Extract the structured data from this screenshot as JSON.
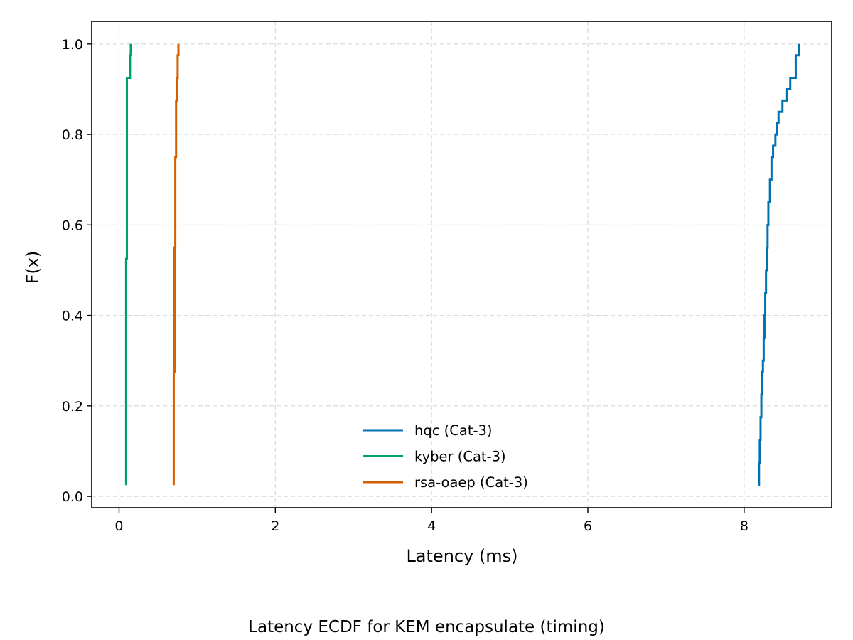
{
  "chart_data": {
    "type": "line",
    "subtype": "ecdf-step",
    "title": "",
    "caption": "Latency ECDF for KEM encapsulate (timing)",
    "xlabel": "Latency (ms)",
    "ylabel": "F(x)",
    "xlim": [
      -0.35,
      9.12
    ],
    "ylim": [
      -0.025,
      1.05
    ],
    "xticks": [
      0,
      2,
      4,
      6,
      8
    ],
    "xtick_labels": [
      "0",
      "2",
      "4",
      "6",
      "8"
    ],
    "yticks": [
      0.0,
      0.2,
      0.4,
      0.6,
      0.8,
      1.0
    ],
    "ytick_labels": [
      "0.0",
      "0.2",
      "0.4",
      "0.6",
      "0.8",
      "1.0"
    ],
    "grid": true,
    "legend_position": "lower center",
    "series": [
      {
        "name": "hqc (Cat-3)",
        "color": "#0072b2",
        "x": [
          8.18,
          8.19,
          8.19,
          8.2,
          8.2,
          8.21,
          8.21,
          8.22,
          8.22,
          8.23,
          8.23,
          8.24,
          8.25,
          8.25,
          8.26,
          8.26,
          8.27,
          8.27,
          8.28,
          8.28,
          8.29,
          8.29,
          8.3,
          8.3,
          8.31,
          8.31,
          8.33,
          8.33,
          8.35,
          8.35,
          8.37,
          8.4,
          8.42,
          8.44,
          8.49,
          8.55,
          8.59,
          8.66,
          8.66,
          8.7
        ],
        "y": [
          0.025,
          0.05,
          0.075,
          0.1,
          0.125,
          0.15,
          0.175,
          0.2,
          0.225,
          0.25,
          0.275,
          0.3,
          0.325,
          0.35,
          0.375,
          0.4,
          0.425,
          0.45,
          0.475,
          0.5,
          0.525,
          0.55,
          0.575,
          0.6,
          0.625,
          0.65,
          0.675,
          0.7,
          0.725,
          0.75,
          0.775,
          0.8,
          0.825,
          0.85,
          0.875,
          0.9,
          0.925,
          0.95,
          0.975,
          1.0
        ]
      },
      {
        "name": "kyber (Cat-3)",
        "color": "#009e73",
        "x": [
          0.09,
          0.09,
          0.09,
          0.09,
          0.09,
          0.09,
          0.09,
          0.09,
          0.09,
          0.09,
          0.09,
          0.09,
          0.09,
          0.09,
          0.09,
          0.09,
          0.09,
          0.09,
          0.09,
          0.09,
          0.09,
          0.1,
          0.1,
          0.1,
          0.1,
          0.1,
          0.1,
          0.1,
          0.1,
          0.1,
          0.1,
          0.1,
          0.1,
          0.1,
          0.1,
          0.1,
          0.1,
          0.14,
          0.14,
          0.15
        ],
        "y": [
          0.025,
          0.05,
          0.075,
          0.1,
          0.125,
          0.15,
          0.175,
          0.2,
          0.225,
          0.25,
          0.275,
          0.3,
          0.325,
          0.35,
          0.375,
          0.4,
          0.425,
          0.45,
          0.475,
          0.5,
          0.525,
          0.55,
          0.575,
          0.6,
          0.625,
          0.65,
          0.675,
          0.7,
          0.725,
          0.75,
          0.775,
          0.8,
          0.825,
          0.85,
          0.875,
          0.9,
          0.925,
          0.95,
          0.975,
          1.0
        ]
      },
      {
        "name": "rsa-oaep (Cat-3)",
        "color": "#d55e00",
        "x": [
          0.7,
          0.7,
          0.7,
          0.7,
          0.7,
          0.7,
          0.7,
          0.7,
          0.7,
          0.7,
          0.7,
          0.71,
          0.71,
          0.71,
          0.71,
          0.71,
          0.71,
          0.71,
          0.71,
          0.71,
          0.71,
          0.71,
          0.72,
          0.72,
          0.72,
          0.72,
          0.72,
          0.72,
          0.72,
          0.72,
          0.73,
          0.73,
          0.73,
          0.73,
          0.73,
          0.74,
          0.74,
          0.75,
          0.75,
          0.76
        ],
        "y": [
          0.025,
          0.05,
          0.075,
          0.1,
          0.125,
          0.15,
          0.175,
          0.2,
          0.225,
          0.25,
          0.275,
          0.3,
          0.325,
          0.35,
          0.375,
          0.4,
          0.425,
          0.45,
          0.475,
          0.5,
          0.525,
          0.55,
          0.575,
          0.6,
          0.625,
          0.65,
          0.675,
          0.7,
          0.725,
          0.75,
          0.775,
          0.8,
          0.825,
          0.85,
          0.875,
          0.9,
          0.925,
          0.95,
          0.975,
          1.0
        ]
      }
    ]
  }
}
